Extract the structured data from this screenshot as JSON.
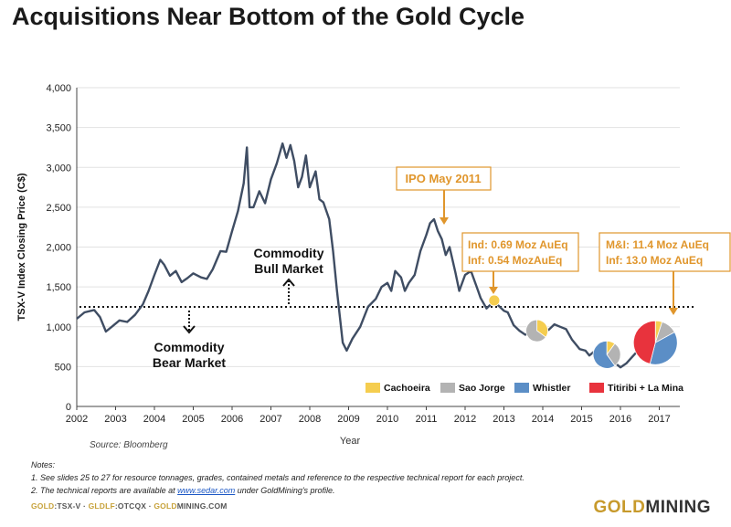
{
  "page": {
    "title": "Acquisitions Near Bottom of the Gold Cycle"
  },
  "notes": {
    "heading": "Notes:",
    "note1": "1. See slides 25 to 27 for resource tonnages, grades, contained metals and reference to the respective technical report for each project.",
    "note2_prefix": "2. The technical reports are available at ",
    "note2_link": "www.sedar.com",
    "note2_suffix": " under GoldMining's profile."
  },
  "footer": {
    "ticker_gold": "GOLD",
    "ticker_gold_suffix": ":TSX-V · ",
    "ticker_gldlf": "GLDLF",
    "ticker_gldlf_suffix": ":OTCQX · ",
    "site_gold": "GOLD",
    "site_suffix": "MINING.COM"
  },
  "logo": {
    "gold": "GOLD",
    "rest": "MINING"
  },
  "colors": {
    "line": "#3f4d63",
    "annotation": "#e0962c",
    "cachoeira": "#f5cd4f",
    "sao_jorge": "#b3b3b3",
    "whistler": "#5b8ec6",
    "titiribi": "#e8333d"
  },
  "chart_data": {
    "type": "line",
    "ylabel": "TSX-V Index Closing Price (C$)",
    "xlabel": "Year",
    "source": "Source: Bloomberg",
    "ylim": [
      0,
      4000
    ],
    "xlim": [
      2002,
      2017.5
    ],
    "yticks": [
      0,
      500,
      1000,
      1500,
      2000,
      2500,
      3000,
      3500,
      4000
    ],
    "ytick_labels": [
      "0",
      "500",
      "1,000",
      "1,500",
      "2,000",
      "2,500",
      "3,000",
      "3,500",
      "4,000"
    ],
    "xticks": [
      2002,
      2003,
      2004,
      2005,
      2006,
      2007,
      2008,
      2009,
      2010,
      2011,
      2012,
      2013,
      2014,
      2015,
      2016,
      2017
    ],
    "grid": "horizontal",
    "series": [
      {
        "points": [
          [
            2002.0,
            1100
          ],
          [
            2002.2,
            1180
          ],
          [
            2002.45,
            1210
          ],
          [
            2002.6,
            1120
          ],
          [
            2002.75,
            940
          ],
          [
            2002.9,
            1000
          ],
          [
            2003.1,
            1080
          ],
          [
            2003.3,
            1060
          ],
          [
            2003.5,
            1150
          ],
          [
            2003.7,
            1280
          ],
          [
            2003.85,
            1450
          ],
          [
            2004.0,
            1650
          ],
          [
            2004.15,
            1840
          ],
          [
            2004.25,
            1780
          ],
          [
            2004.4,
            1640
          ],
          [
            2004.55,
            1700
          ],
          [
            2004.7,
            1560
          ],
          [
            2004.85,
            1610
          ],
          [
            2005.0,
            1670
          ],
          [
            2005.2,
            1620
          ],
          [
            2005.35,
            1600
          ],
          [
            2005.5,
            1720
          ],
          [
            2005.7,
            1950
          ],
          [
            2005.85,
            1940
          ],
          [
            2006.0,
            2200
          ],
          [
            2006.15,
            2450
          ],
          [
            2006.3,
            2800
          ],
          [
            2006.38,
            3250
          ],
          [
            2006.45,
            2500
          ],
          [
            2006.55,
            2500
          ],
          [
            2006.7,
            2700
          ],
          [
            2006.85,
            2550
          ],
          [
            2007.0,
            2850
          ],
          [
            2007.15,
            3050
          ],
          [
            2007.3,
            3300
          ],
          [
            2007.4,
            3120
          ],
          [
            2007.5,
            3280
          ],
          [
            2007.6,
            3080
          ],
          [
            2007.7,
            2750
          ],
          [
            2007.8,
            2880
          ],
          [
            2007.9,
            3150
          ],
          [
            2008.0,
            2750
          ],
          [
            2008.15,
            2950
          ],
          [
            2008.25,
            2600
          ],
          [
            2008.35,
            2560
          ],
          [
            2008.5,
            2350
          ],
          [
            2008.6,
            1950
          ],
          [
            2008.7,
            1450
          ],
          [
            2008.85,
            800
          ],
          [
            2008.95,
            700
          ],
          [
            2009.1,
            850
          ],
          [
            2009.3,
            1000
          ],
          [
            2009.5,
            1250
          ],
          [
            2009.7,
            1350
          ],
          [
            2009.85,
            1500
          ],
          [
            2010.0,
            1550
          ],
          [
            2010.1,
            1450
          ],
          [
            2010.2,
            1700
          ],
          [
            2010.35,
            1620
          ],
          [
            2010.45,
            1450
          ],
          [
            2010.55,
            1550
          ],
          [
            2010.7,
            1650
          ],
          [
            2010.85,
            1950
          ],
          [
            2011.0,
            2150
          ],
          [
            2011.1,
            2300
          ],
          [
            2011.2,
            2350
          ],
          [
            2011.3,
            2200
          ],
          [
            2011.4,
            2100
          ],
          [
            2011.5,
            1900
          ],
          [
            2011.6,
            2000
          ],
          [
            2011.75,
            1680
          ],
          [
            2011.85,
            1450
          ],
          [
            2012.0,
            1650
          ],
          [
            2012.15,
            1700
          ],
          [
            2012.3,
            1500
          ],
          [
            2012.4,
            1360
          ],
          [
            2012.55,
            1230
          ],
          [
            2012.7,
            1300
          ],
          [
            2012.85,
            1270
          ],
          [
            2013.0,
            1200
          ],
          [
            2013.1,
            1180
          ],
          [
            2013.25,
            1020
          ],
          [
            2013.4,
            950
          ],
          [
            2013.55,
            900
          ],
          [
            2013.7,
            950
          ],
          [
            2013.85,
            930
          ],
          [
            2014.0,
            980
          ],
          [
            2014.15,
            960
          ],
          [
            2014.3,
            1030
          ],
          [
            2014.45,
            1000
          ],
          [
            2014.6,
            970
          ],
          [
            2014.75,
            840
          ],
          [
            2014.85,
            780
          ],
          [
            2014.95,
            720
          ],
          [
            2015.1,
            700
          ],
          [
            2015.2,
            640
          ],
          [
            2015.35,
            700
          ],
          [
            2015.5,
            650
          ],
          [
            2015.6,
            570
          ],
          [
            2015.75,
            560
          ],
          [
            2015.9,
            530
          ],
          [
            2016.0,
            490
          ],
          [
            2016.15,
            540
          ],
          [
            2016.3,
            620
          ],
          [
            2016.45,
            700
          ],
          [
            2016.6,
            800
          ],
          [
            2016.75,
            760
          ],
          [
            2016.85,
            720
          ],
          [
            2016.95,
            730
          ],
          [
            2017.1,
            800
          ],
          [
            2017.2,
            840
          ]
        ]
      }
    ],
    "reference_line": {
      "y": 1250,
      "style": "dotted"
    },
    "annotations": [
      {
        "text": "Commodity Bull Market",
        "x": 2007.45,
        "y": 1900,
        "arrow": "up"
      },
      {
        "text": "Commodity Bear Market",
        "x": 2004.85,
        "y": 900,
        "arrow": "down"
      },
      {
        "text": "IPO May 2011",
        "x": 2011.5,
        "y": 2250,
        "label_x": 2011.0,
        "label_y": 2880
      },
      {
        "text": "Ind: 0.69 Moz AuEq",
        "x": 2012.75,
        "y": 1300
      },
      {
        "text": "Inf: 0.54 MozAuEq",
        "x": 2012.75,
        "y": 1300
      },
      {
        "text": "M&I: 11.4 Moz AuEq",
        "x": 2017.05,
        "y": 1100
      },
      {
        "text": "Inf: 13.0 Moz AuEq",
        "x": 2017.05,
        "y": 1100
      }
    ],
    "acquisitions": [
      {
        "x": 2012.75,
        "y": 1330,
        "slices": [
          {
            "project": "Cachoeira",
            "value": 1
          }
        ]
      },
      {
        "x": 2013.85,
        "y": 950,
        "slices": [
          {
            "project": "Cachoeira",
            "value": 0.35
          },
          {
            "project": "Sao Jorge",
            "value": 0.65
          }
        ]
      },
      {
        "x": 2015.65,
        "y": 650,
        "slices": [
          {
            "project": "Cachoeira",
            "value": 0.1
          },
          {
            "project": "Sao Jorge",
            "value": 0.3
          },
          {
            "project": "Whistler",
            "value": 0.6
          }
        ]
      },
      {
        "x": 2016.9,
        "y": 800,
        "slices": [
          {
            "project": "Cachoeira",
            "value": 0.05
          },
          {
            "project": "Sao Jorge",
            "value": 0.12
          },
          {
            "project": "Whistler",
            "value": 0.37
          },
          {
            "project": "Titiribi + La Mina",
            "value": 0.46
          }
        ]
      }
    ],
    "legend": {
      "placement": "bottom-right",
      "items": [
        "Cachoeira",
        "Sao Jorge",
        "Whistler",
        "Titiribi + La Mina"
      ]
    }
  }
}
